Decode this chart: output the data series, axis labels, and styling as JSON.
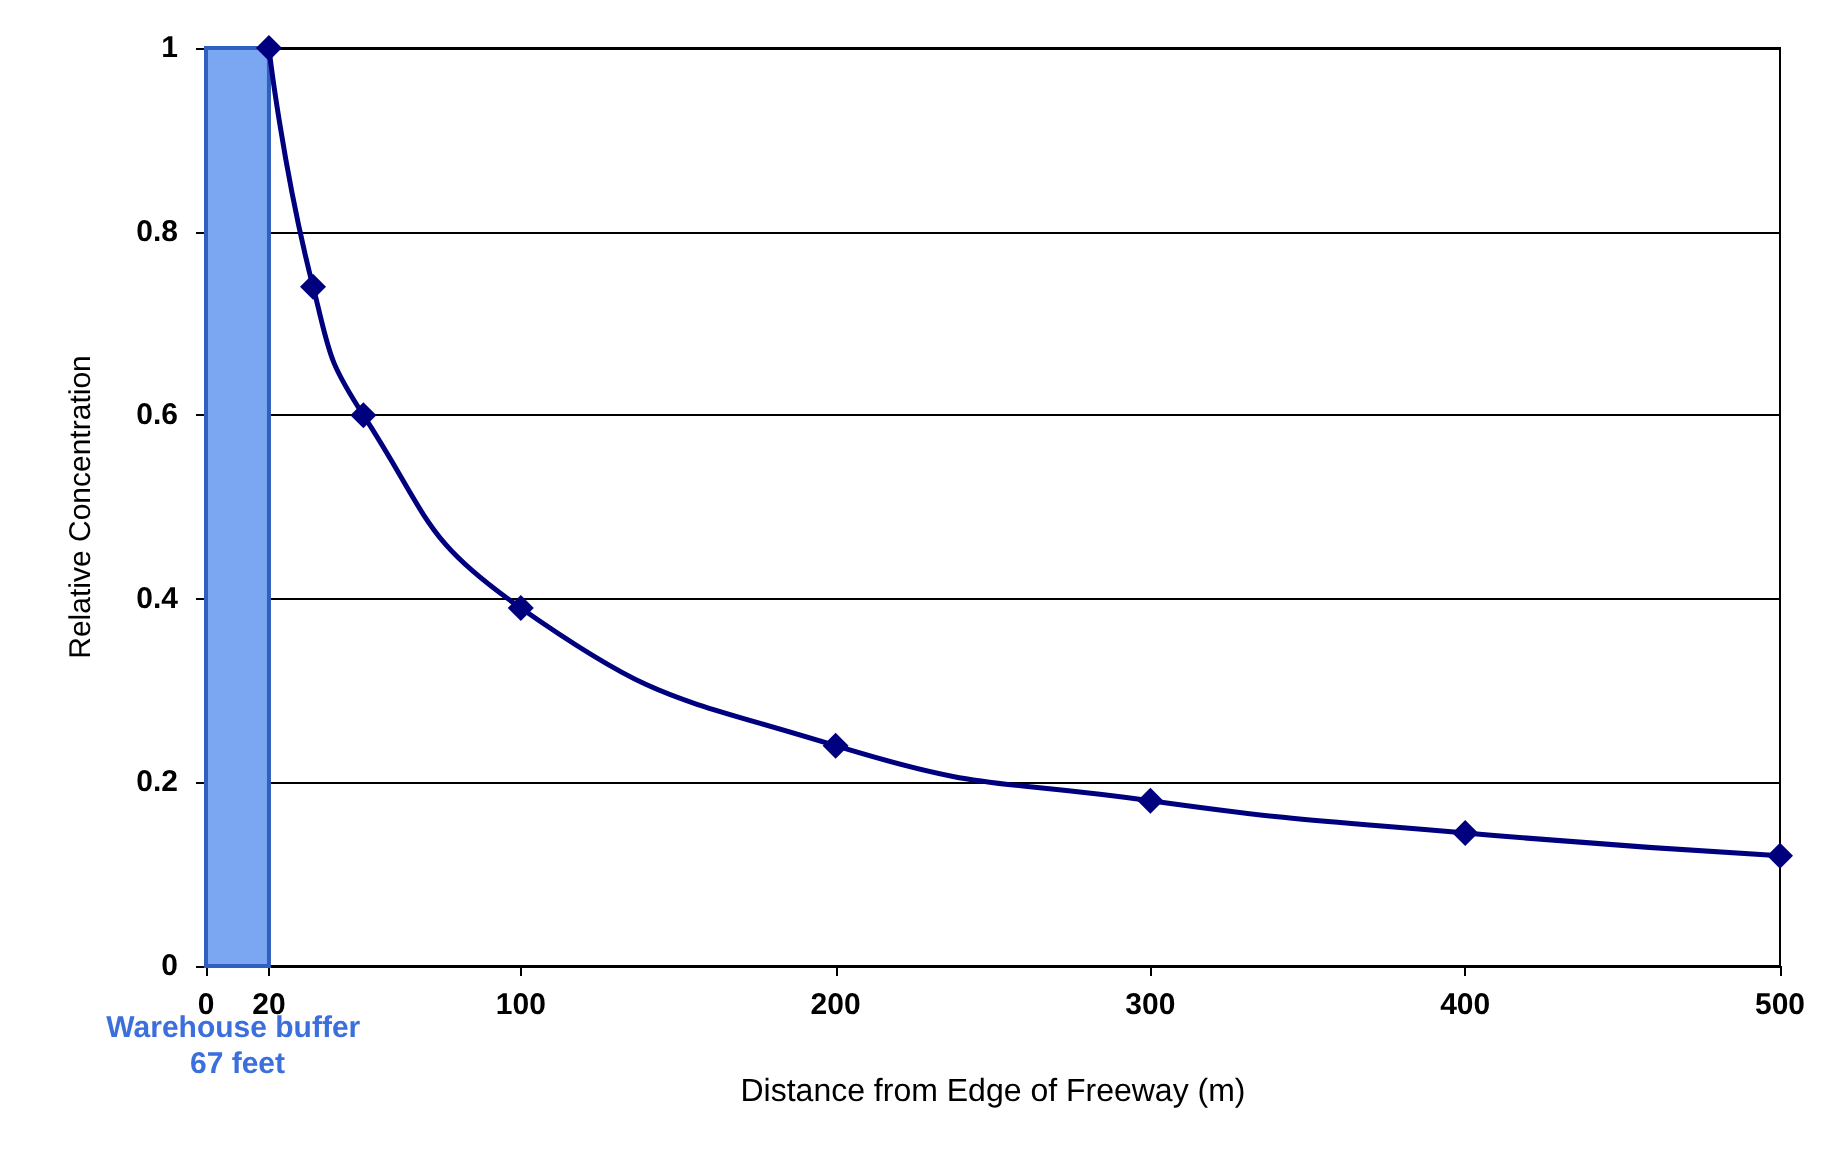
{
  "chart_data": {
    "type": "line",
    "xlabel": "Distance from Edge of Freeway (m)",
    "ylabel": "Relative Concentration",
    "x": [
      20,
      34,
      50,
      100,
      200,
      300,
      400,
      500
    ],
    "series": [
      {
        "color": "#00007f",
        "values": [
          1.0,
          0.74,
          0.6,
          0.39,
          0.24,
          0.18,
          0.145,
          0.12
        ]
      }
    ],
    "xlim": [
      0,
      500
    ],
    "xticks": [
      0,
      20,
      100,
      200,
      300,
      400,
      500
    ],
    "ylim": [
      0,
      1
    ],
    "yticks": [
      0,
      0.2,
      0.4,
      0.6,
      0.8,
      1
    ],
    "bands": [
      {
        "axis": "x",
        "from": 0,
        "to": 20,
        "label": "Warehouse buffer 67 feet",
        "color": "#7aa6f2"
      }
    ],
    "grid": "y",
    "marker": "diamond",
    "line_style": "solid"
  }
}
